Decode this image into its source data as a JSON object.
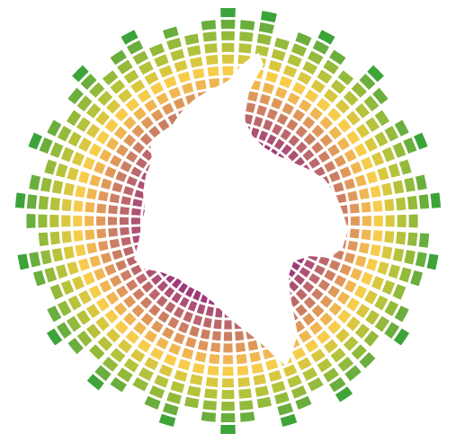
{
  "chart_data": {
    "type": "radial_bar",
    "levels": [
      14,
      13,
      14,
      12,
      13,
      14,
      13,
      12,
      14,
      13,
      12,
      13,
      14,
      12,
      13,
      14,
      12,
      13,
      14,
      13,
      12,
      13,
      14,
      12,
      13,
      13,
      14,
      12,
      13,
      14,
      12,
      13,
      14,
      13,
      12,
      14,
      13,
      12,
      13,
      14,
      12,
      13,
      14,
      13,
      12,
      13,
      14,
      12,
      13,
      14,
      13,
      12,
      14,
      13,
      12,
      13,
      14,
      12,
      13,
      14,
      12,
      13,
      12,
      13
    ],
    "colors": [
      "#8a1f79",
      "#93287a",
      "#9f3a78",
      "#ad5073",
      "#bc676c",
      "#cc7e63",
      "#e0985a",
      "#f0b652",
      "#f6cc4a",
      "#d9c740",
      "#b5c23b",
      "#93ba3b",
      "#6aae3d",
      "#3da43a"
    ],
    "tick_labels": false
  }
}
